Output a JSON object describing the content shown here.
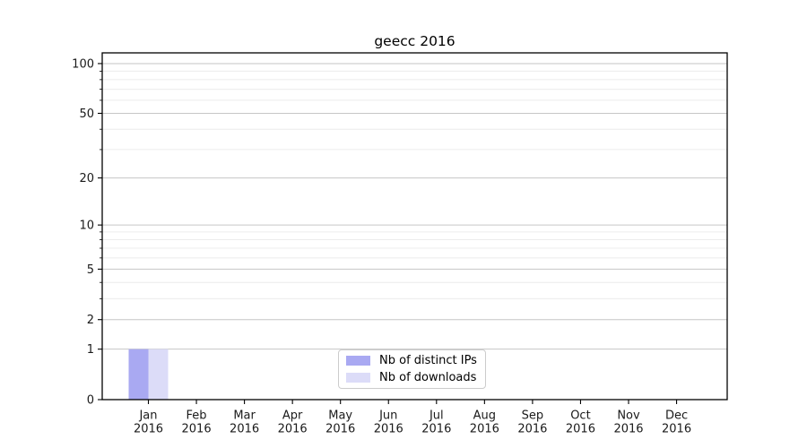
{
  "header": {
    "title": "geecc 2016"
  },
  "chart_data": {
    "type": "bar",
    "title": "geecc 2016",
    "xlabel": "",
    "ylabel": "",
    "y_scale": "log1p",
    "ylim": [
      0,
      116
    ],
    "grid": "on",
    "legend_position": "lower-center",
    "y_major_ticks": [
      0,
      1,
      2,
      5,
      10,
      20,
      50,
      100
    ],
    "y_minor_ticks": [
      3,
      4,
      6,
      7,
      8,
      9,
      30,
      40,
      60,
      70,
      80,
      90
    ],
    "categories": [
      [
        "Jan",
        "2016"
      ],
      [
        "Feb",
        "2016"
      ],
      [
        "Mar",
        "2016"
      ],
      [
        "Apr",
        "2016"
      ],
      [
        "May",
        "2016"
      ],
      [
        "Jun",
        "2016"
      ],
      [
        "Jul",
        "2016"
      ],
      [
        "Aug",
        "2016"
      ],
      [
        "Sep",
        "2016"
      ],
      [
        "Oct",
        "2016"
      ],
      [
        "Nov",
        "2016"
      ],
      [
        "Dec",
        "2016"
      ]
    ],
    "series": [
      {
        "name": "Nb of distinct IPs",
        "color": "#a9a9f2",
        "values": [
          1,
          0,
          0,
          0,
          0,
          0,
          0,
          0,
          0,
          0,
          0,
          0
        ]
      },
      {
        "name": "Nb of downloads",
        "color": "#dcdcf8",
        "values": [
          1,
          0,
          0,
          0,
          0,
          0,
          0,
          0,
          0,
          0,
          0,
          0
        ]
      }
    ]
  },
  "colors": {
    "axis": "#000000",
    "tick_label": "#1a1a1a",
    "grid_major": "#c6c6c6",
    "grid_minor": "#ececec",
    "background": "#ffffff",
    "legend_border": "#cccccc"
  }
}
